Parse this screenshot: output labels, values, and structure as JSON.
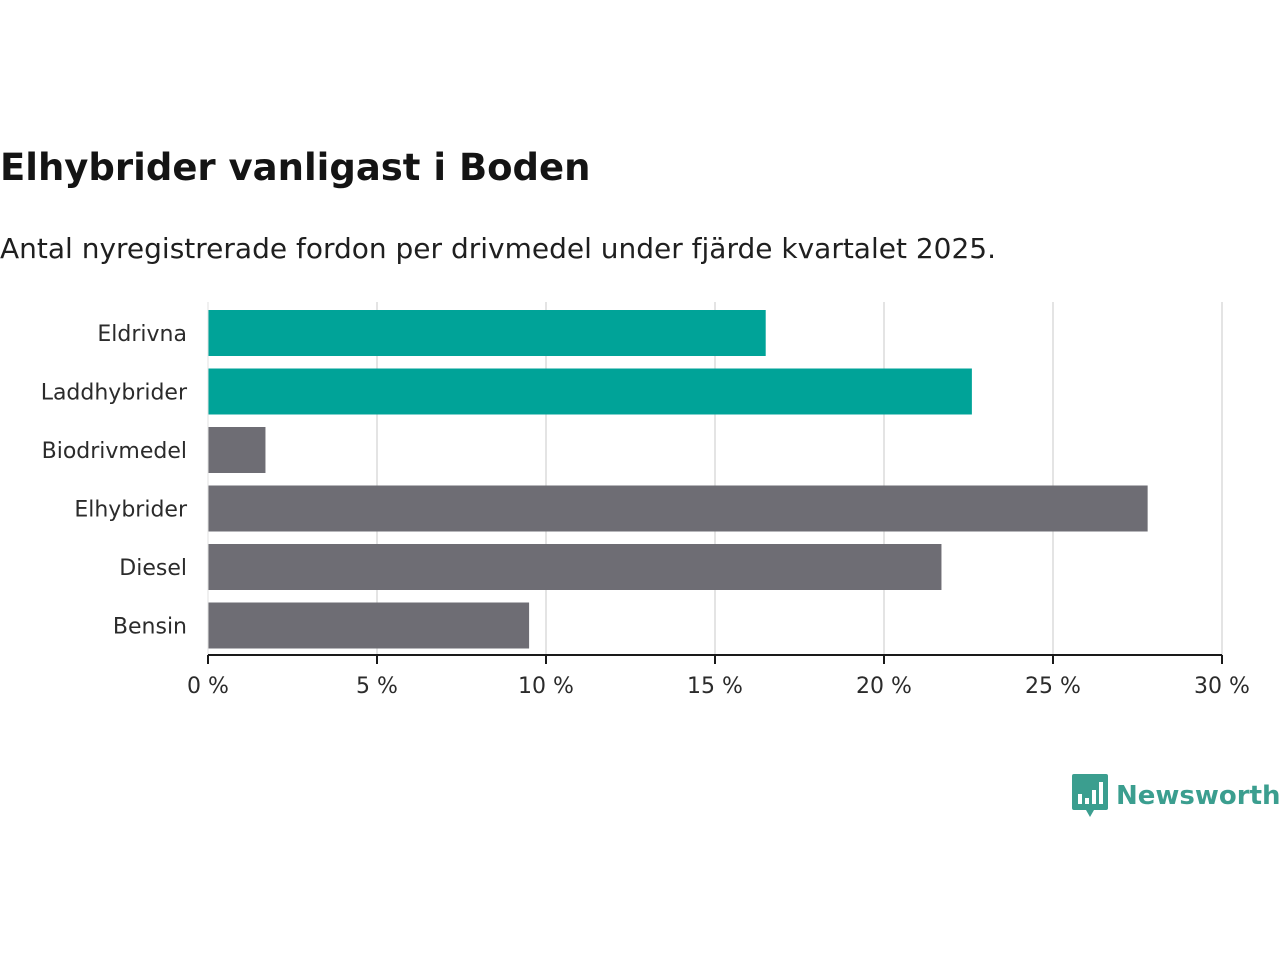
{
  "chart_data": {
    "type": "bar",
    "orientation": "horizontal",
    "title": "Elhybrider vanligast i Boden",
    "subtitle": "Antal nyregistrerade fordon per drivmedel under fjärde kvartalet 2025.",
    "categories": [
      "Eldrivna",
      "Laddhybrider",
      "Biodrivmedel",
      "Elhybrider",
      "Diesel",
      "Bensin"
    ],
    "values": [
      16.5,
      22.6,
      1.7,
      27.8,
      21.7,
      9.5
    ],
    "colors": [
      "#00a398",
      "#00a398",
      "#6e6d74",
      "#6e6d74",
      "#6e6d74",
      "#6e6d74"
    ],
    "xlim": [
      0,
      30
    ],
    "xticks": [
      0,
      5,
      10,
      15,
      20,
      25,
      30
    ],
    "xtick_labels": [
      "0 %",
      "5 %",
      "10 %",
      "15 %",
      "20 %",
      "25 %",
      "30 %"
    ],
    "xlabel": "",
    "ylabel": "",
    "grid": true,
    "unit": "%"
  },
  "brand": {
    "name": "Newsworthy",
    "icon": "newsworthy-logo-icon",
    "color": "#3b9e8f"
  }
}
